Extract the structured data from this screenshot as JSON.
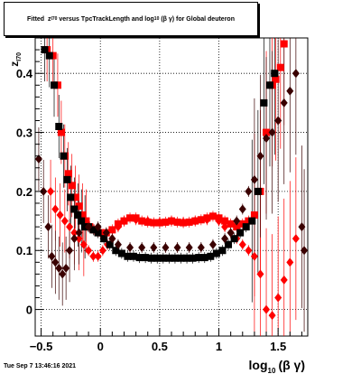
{
  "title_parts": {
    "fitted": "Fitted",
    "z": "z",
    "z_sub": "I70",
    "versus": "versus TpcTrackLength and log",
    "log_sub": "10",
    "beta_gamma": "(β γ) for Global deuteron"
  },
  "footer": {
    "timestamp": "Tue Sep  7 13:46:16 2021"
  },
  "colors": {
    "series_red": "#ff0000",
    "series_black": "#000000",
    "series_dark": "#3a0000"
  },
  "chart_data": {
    "type": "scatter",
    "title": "Fitted z_I70 versus TpcTrackLength and log10(β γ) for Global deuteron",
    "xlabel": "log10(β γ)",
    "xlabel_parts": {
      "main": "log",
      "sub": "10",
      "rest": "(β γ)"
    },
    "ylabel": "z_I70",
    "ylabel_parts": {
      "main": "z",
      "sub": "I70"
    },
    "xlim": [
      -0.55,
      1.75
    ],
    "ylim": [
      -0.045,
      0.46
    ],
    "x_ticks": [
      -0.5,
      0,
      0.5,
      1,
      1.5
    ],
    "x_tick_labels": [
      "−0.5",
      "0",
      "0.5",
      "1",
      "1.5"
    ],
    "y_ticks": [
      0,
      0.1,
      0.2,
      0.3,
      0.4
    ],
    "y_tick_labels": [
      "0",
      "0.1",
      "0.2",
      "0.3",
      "0.4"
    ],
    "grid": true,
    "series": [
      {
        "color": "#ff0000",
        "marker": "square",
        "points": [
          [
            -0.45,
            0.44
          ],
          [
            -0.4,
            0.43
          ],
          [
            -0.36,
            0.38
          ],
          [
            -0.33,
            0.3
          ],
          [
            -0.3,
            0.26
          ],
          [
            -0.27,
            0.23
          ],
          [
            -0.24,
            0.21
          ],
          [
            -0.21,
            0.19
          ],
          [
            -0.18,
            0.175
          ],
          [
            -0.15,
            0.16
          ],
          [
            -0.12,
            0.15
          ],
          [
            -0.09,
            0.14
          ],
          [
            -0.05,
            0.135
          ],
          [
            0.0,
            0.13
          ],
          [
            0.05,
            0.13
          ],
          [
            0.1,
            0.135
          ],
          [
            0.15,
            0.145
          ],
          [
            0.2,
            0.15
          ],
          [
            0.25,
            0.155
          ],
          [
            0.3,
            0.155
          ],
          [
            0.35,
            0.15
          ],
          [
            0.4,
            0.148
          ],
          [
            0.45,
            0.147
          ],
          [
            0.5,
            0.147
          ],
          [
            0.55,
            0.148
          ],
          [
            0.6,
            0.15
          ],
          [
            0.65,
            0.148
          ],
          [
            0.7,
            0.147
          ],
          [
            0.75,
            0.148
          ],
          [
            0.8,
            0.15
          ],
          [
            0.85,
            0.152
          ],
          [
            0.9,
            0.155
          ],
          [
            0.95,
            0.158
          ],
          [
            1.0,
            0.155
          ],
          [
            1.05,
            0.15
          ],
          [
            1.1,
            0.145
          ],
          [
            1.15,
            0.14
          ],
          [
            1.2,
            0.145
          ],
          [
            1.25,
            0.15
          ],
          [
            1.3,
            0.16
          ],
          [
            1.35,
            0.2
          ],
          [
            1.4,
            0.3
          ],
          [
            1.45,
            0.38
          ],
          [
            1.48,
            0.39
          ],
          [
            1.52,
            0.41
          ],
          [
            1.55,
            0.45
          ]
        ]
      },
      {
        "color": "#ff0000",
        "marker": "diamond",
        "points": [
          [
            -0.42,
            0.2
          ],
          [
            -0.38,
            0.17
          ],
          [
            -0.34,
            0.16
          ],
          [
            -0.3,
            0.15
          ],
          [
            -0.26,
            0.14
          ],
          [
            -0.22,
            0.13
          ],
          [
            -0.18,
            0.12
          ],
          [
            -0.14,
            0.11
          ],
          [
            -0.1,
            0.1
          ],
          [
            -0.06,
            0.09
          ],
          [
            -0.02,
            0.09
          ],
          [
            0.02,
            0.1
          ],
          [
            0.06,
            0.11
          ],
          [
            0.1,
            0.12
          ],
          [
            0.15,
            0.14
          ],
          [
            0.2,
            0.15
          ],
          [
            0.3,
            0.152
          ],
          [
            0.4,
            0.15
          ],
          [
            0.5,
            0.148
          ],
          [
            0.6,
            0.15
          ],
          [
            0.7,
            0.148
          ],
          [
            0.8,
            0.15
          ],
          [
            0.9,
            0.152
          ],
          [
            1.0,
            0.15
          ],
          [
            1.05,
            0.14
          ],
          [
            1.1,
            0.13
          ],
          [
            1.15,
            0.12
          ],
          [
            1.2,
            0.11
          ],
          [
            1.25,
            0.1
          ],
          [
            1.3,
            0.09
          ],
          [
            1.35,
            0.06
          ],
          [
            1.4,
            0.0
          ],
          [
            1.45,
            -0.01
          ],
          [
            1.5,
            0.02
          ],
          [
            1.55,
            0.05
          ],
          [
            1.6,
            0.08
          ],
          [
            1.65,
            0.12
          ]
        ]
      },
      {
        "color": "#000000",
        "marker": "square",
        "points": [
          [
            -0.47,
            0.44
          ],
          [
            -0.43,
            0.43
          ],
          [
            -0.39,
            0.38
          ],
          [
            -0.35,
            0.31
          ],
          [
            -0.31,
            0.26
          ],
          [
            -0.28,
            0.22
          ],
          [
            -0.25,
            0.19
          ],
          [
            -0.22,
            0.17
          ],
          [
            -0.19,
            0.16
          ],
          [
            -0.16,
            0.15
          ],
          [
            -0.13,
            0.14
          ],
          [
            -0.1,
            0.14
          ],
          [
            -0.06,
            0.135
          ],
          [
            -0.02,
            0.13
          ],
          [
            0.03,
            0.12
          ],
          [
            0.08,
            0.11
          ],
          [
            0.13,
            0.1
          ],
          [
            0.18,
            0.095
          ],
          [
            0.23,
            0.09
          ],
          [
            0.28,
            0.09
          ],
          [
            0.33,
            0.088
          ],
          [
            0.38,
            0.088
          ],
          [
            0.43,
            0.087
          ],
          [
            0.48,
            0.087
          ],
          [
            0.53,
            0.087
          ],
          [
            0.58,
            0.087
          ],
          [
            0.63,
            0.087
          ],
          [
            0.68,
            0.087
          ],
          [
            0.73,
            0.087
          ],
          [
            0.78,
            0.087
          ],
          [
            0.83,
            0.088
          ],
          [
            0.88,
            0.088
          ],
          [
            0.93,
            0.09
          ],
          [
            0.98,
            0.095
          ],
          [
            1.03,
            0.1
          ],
          [
            1.08,
            0.11
          ],
          [
            1.13,
            0.12
          ],
          [
            1.18,
            0.13
          ],
          [
            1.23,
            0.14
          ],
          [
            1.28,
            0.15
          ],
          [
            1.33,
            0.2
          ],
          [
            1.38,
            0.35
          ],
          [
            1.43,
            0.38
          ],
          [
            1.47,
            0.4
          ]
        ]
      },
      {
        "color": "#3a0000",
        "marker": "diamond",
        "points": [
          [
            -0.52,
            0.255
          ],
          [
            -0.48,
            0.2
          ],
          [
            -0.44,
            0.14
          ],
          [
            -0.41,
            0.09
          ],
          [
            -0.38,
            0.08
          ],
          [
            -0.35,
            0.07
          ],
          [
            -0.32,
            0.06
          ],
          [
            -0.29,
            0.07
          ],
          [
            -0.26,
            0.1
          ],
          [
            -0.22,
            0.12
          ],
          [
            -0.18,
            0.13
          ],
          [
            -0.1,
            0.14
          ],
          [
            -0.02,
            0.14
          ],
          [
            0.05,
            0.13
          ],
          [
            0.1,
            0.12
          ],
          [
            0.15,
            0.11
          ],
          [
            0.25,
            0.105
          ],
          [
            0.35,
            0.105
          ],
          [
            0.45,
            0.105
          ],
          [
            0.55,
            0.105
          ],
          [
            0.65,
            0.105
          ],
          [
            0.75,
            0.105
          ],
          [
            0.85,
            0.105
          ],
          [
            0.95,
            0.11
          ],
          [
            1.05,
            0.12
          ],
          [
            1.1,
            0.13
          ],
          [
            1.15,
            0.15
          ],
          [
            1.2,
            0.17
          ],
          [
            1.25,
            0.2
          ],
          [
            1.3,
            0.22
          ],
          [
            1.35,
            0.26
          ],
          [
            1.4,
            0.29
          ],
          [
            1.45,
            0.3
          ],
          [
            1.5,
            0.32
          ],
          [
            1.55,
            0.35
          ],
          [
            1.6,
            0.37
          ],
          [
            1.65,
            0.4
          ],
          [
            1.7,
            0.14
          ],
          [
            1.72,
            0.1
          ]
        ]
      }
    ]
  }
}
